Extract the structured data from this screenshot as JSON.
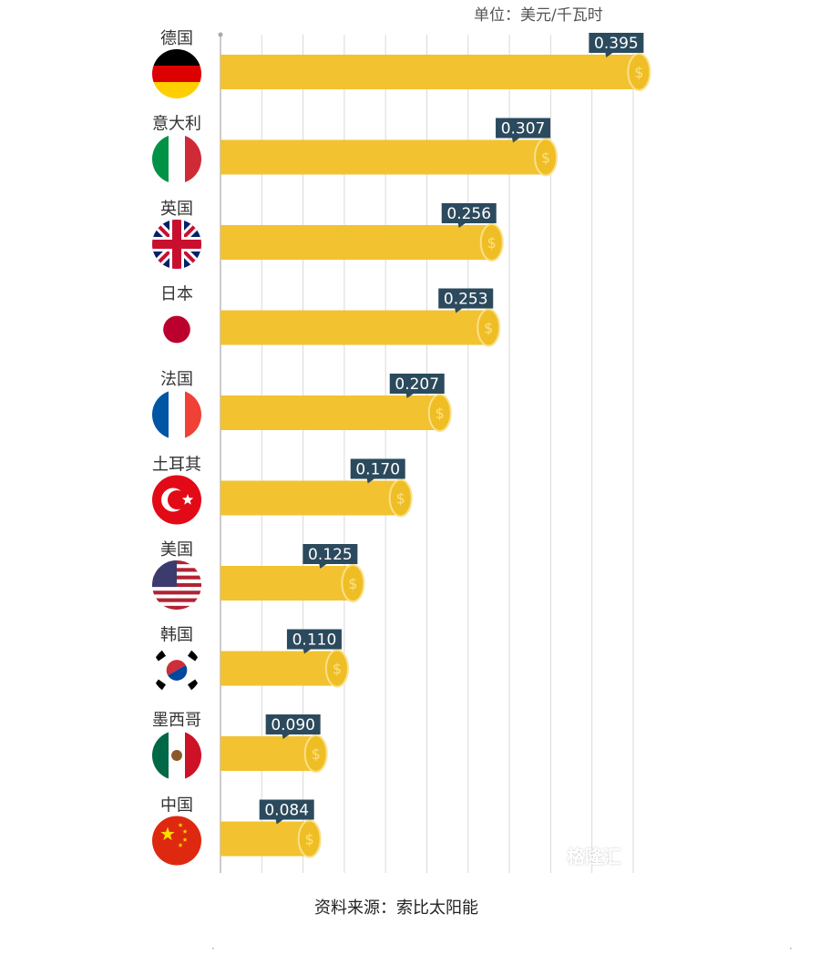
{
  "unit_label": "单位：美元/千瓦时",
  "source_caption": "资料来源：索比太阳能",
  "watermark": "格隆汇",
  "colors": {
    "bar": "#f2c230",
    "coin": "#efbe25",
    "coin_stroke": "#fbe08a",
    "value_tag": "#2c4a5d",
    "gridline": "#d9d9d9",
    "country_text": "#333333"
  },
  "chart_data": {
    "type": "bar",
    "orientation": "horizontal",
    "title": "",
    "xlabel": "",
    "ylabel": "",
    "unit": "单位：美元/千瓦时",
    "grid": true,
    "legend": "none",
    "xlim": [
      0,
      0.48
    ],
    "categories": [
      "德国",
      "意大利",
      "英国",
      "日本",
      "法国",
      "土耳其",
      "美国",
      "韩国",
      "墨西哥",
      "中国"
    ],
    "values": [
      0.395,
      0.307,
      0.256,
      0.253,
      0.207,
      0.17,
      0.125,
      0.11,
      0.09,
      0.084
    ],
    "value_labels": [
      "0.395",
      "0.307",
      "0.256",
      "0.253",
      "0.207",
      "0.170",
      "0.125",
      "0.110",
      "0.090",
      "0.084"
    ],
    "flags": [
      "germany-flag",
      "italy-flag",
      "uk-flag",
      "japan-flag",
      "france-flag",
      "turkey-flag",
      "usa-flag",
      "south-korea-flag",
      "mexico-flag",
      "china-flag"
    ]
  }
}
